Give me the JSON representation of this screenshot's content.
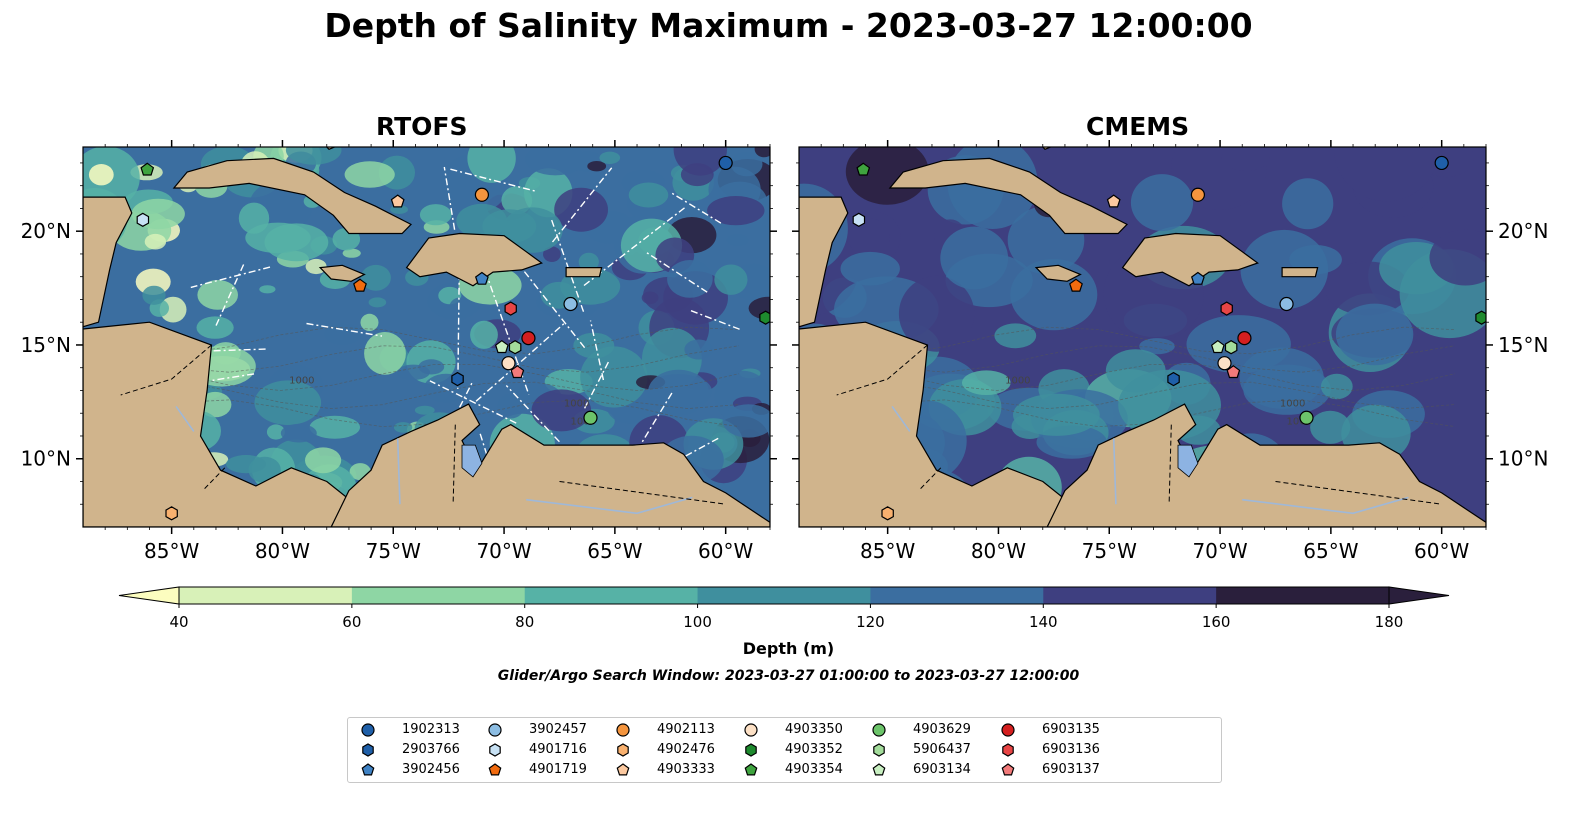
{
  "title": "Depth of Salinity Maximum - 2023-03-27 12:00:00",
  "panels": [
    {
      "title": "RTOFS",
      "lat_side": "left"
    },
    {
      "title": "CMEMS",
      "lat_side": "right"
    }
  ],
  "extent": {
    "lon": [
      -89,
      -58
    ],
    "lat": [
      7,
      23.7
    ]
  },
  "lon_ticks": [
    "85°W",
    "80°W",
    "75°W",
    "70°W",
    "65°W",
    "60°W"
  ],
  "lon_tick_values": [
    -85,
    -80,
    -75,
    -70,
    -65,
    -60
  ],
  "lat_ticks": [
    "20°N",
    "15°N",
    "10°N"
  ],
  "lat_tick_values": [
    20,
    15,
    10
  ],
  "colorbar": {
    "label": "Depth (m)",
    "tick_labels": [
      "40",
      "60",
      "80",
      "100",
      "120",
      "140",
      "160",
      "180"
    ],
    "colors": [
      "#fcfdbf",
      "#d8f1b8",
      "#8ed6a4",
      "#56b2a6",
      "#3f8f9e",
      "#3b6ea0",
      "#3e3f80",
      "#2a1f3c"
    ],
    "extend": "both"
  },
  "map_colors": {
    "land": "#d0b48c",
    "lake": "#9fb8d8",
    "bathy_contour": "#555555"
  },
  "contour_labels": [
    "1000",
    "1000",
    "1000"
  ],
  "search_window": "Glider/Argo Search Window: 2023-03-27 01:00:00 to 2023-03-27 12:00:00",
  "legend": [
    {
      "id": "1902313",
      "marker": "circle",
      "color": "#1f5fa8"
    },
    {
      "id": "2903766",
      "marker": "hexagon",
      "color": "#1f5fa8"
    },
    {
      "id": "3902456",
      "marker": "pentagon",
      "color": "#3f82c4"
    },
    {
      "id": "3902457",
      "marker": "circle",
      "color": "#8cbde3"
    },
    {
      "id": "4901716",
      "marker": "hexagon",
      "color": "#c7e1f4"
    },
    {
      "id": "4901719",
      "marker": "pentagon",
      "color": "#f26b0f"
    },
    {
      "id": "4902113",
      "marker": "circle",
      "color": "#f5953e"
    },
    {
      "id": "4902476",
      "marker": "hexagon",
      "color": "#f9b16f"
    },
    {
      "id": "4903333",
      "marker": "pentagon",
      "color": "#fcc9a0"
    },
    {
      "id": "4903350",
      "marker": "circle",
      "color": "#fde1c6"
    },
    {
      "id": "4903352",
      "marker": "hexagon",
      "color": "#1e8a2e"
    },
    {
      "id": "4903354",
      "marker": "pentagon",
      "color": "#3fa43f"
    },
    {
      "id": "4903629",
      "marker": "circle",
      "color": "#6cc46a"
    },
    {
      "id": "5906437",
      "marker": "hexagon",
      "color": "#a3dc9b"
    },
    {
      "id": "6903134",
      "marker": "pentagon",
      "color": "#c8efc1"
    },
    {
      "id": "6903135",
      "marker": "circle",
      "color": "#d41f1f"
    },
    {
      "id": "6903136",
      "marker": "hexagon",
      "color": "#e84545"
    },
    {
      "id": "6903137",
      "marker": "pentagon",
      "color": "#f27a7a"
    }
  ],
  "floats": [
    {
      "id": "1902313",
      "lon": -60.0,
      "lat": 23.0
    },
    {
      "id": "2903766",
      "lon": -72.1,
      "lat": 13.5
    },
    {
      "id": "3902456",
      "lon": -71.0,
      "lat": 17.9
    },
    {
      "id": "3902457",
      "lon": -67.0,
      "lat": 16.8
    },
    {
      "id": "4901716",
      "lon": -86.3,
      "lat": 20.5
    },
    {
      "id": "4901719",
      "lon": -76.5,
      "lat": 17.6
    },
    {
      "id": "4902113",
      "lon": -71.0,
      "lat": 21.6
    },
    {
      "id": "4902476",
      "lon": -85.0,
      "lat": 7.6
    },
    {
      "id": "4903333",
      "lon": -74.8,
      "lat": 21.3
    },
    {
      "id": "4903350",
      "lon": -69.8,
      "lat": 14.2
    },
    {
      "id": "4903352",
      "lon": -58.2,
      "lat": 16.2
    },
    {
      "id": "4903354",
      "lon": -86.1,
      "lat": 22.7
    },
    {
      "id": "4903629",
      "lon": -66.1,
      "lat": 11.8
    },
    {
      "id": "5906437",
      "lon": -69.5,
      "lat": 14.9
    },
    {
      "id": "6903134",
      "lon": -70.1,
      "lat": 14.9
    },
    {
      "id": "6903135",
      "lon": -68.9,
      "lat": 15.3
    },
    {
      "id": "6903136",
      "lon": -69.7,
      "lat": 16.6
    },
    {
      "id": "6903137",
      "lon": -69.4,
      "lat": 13.8
    }
  ]
}
